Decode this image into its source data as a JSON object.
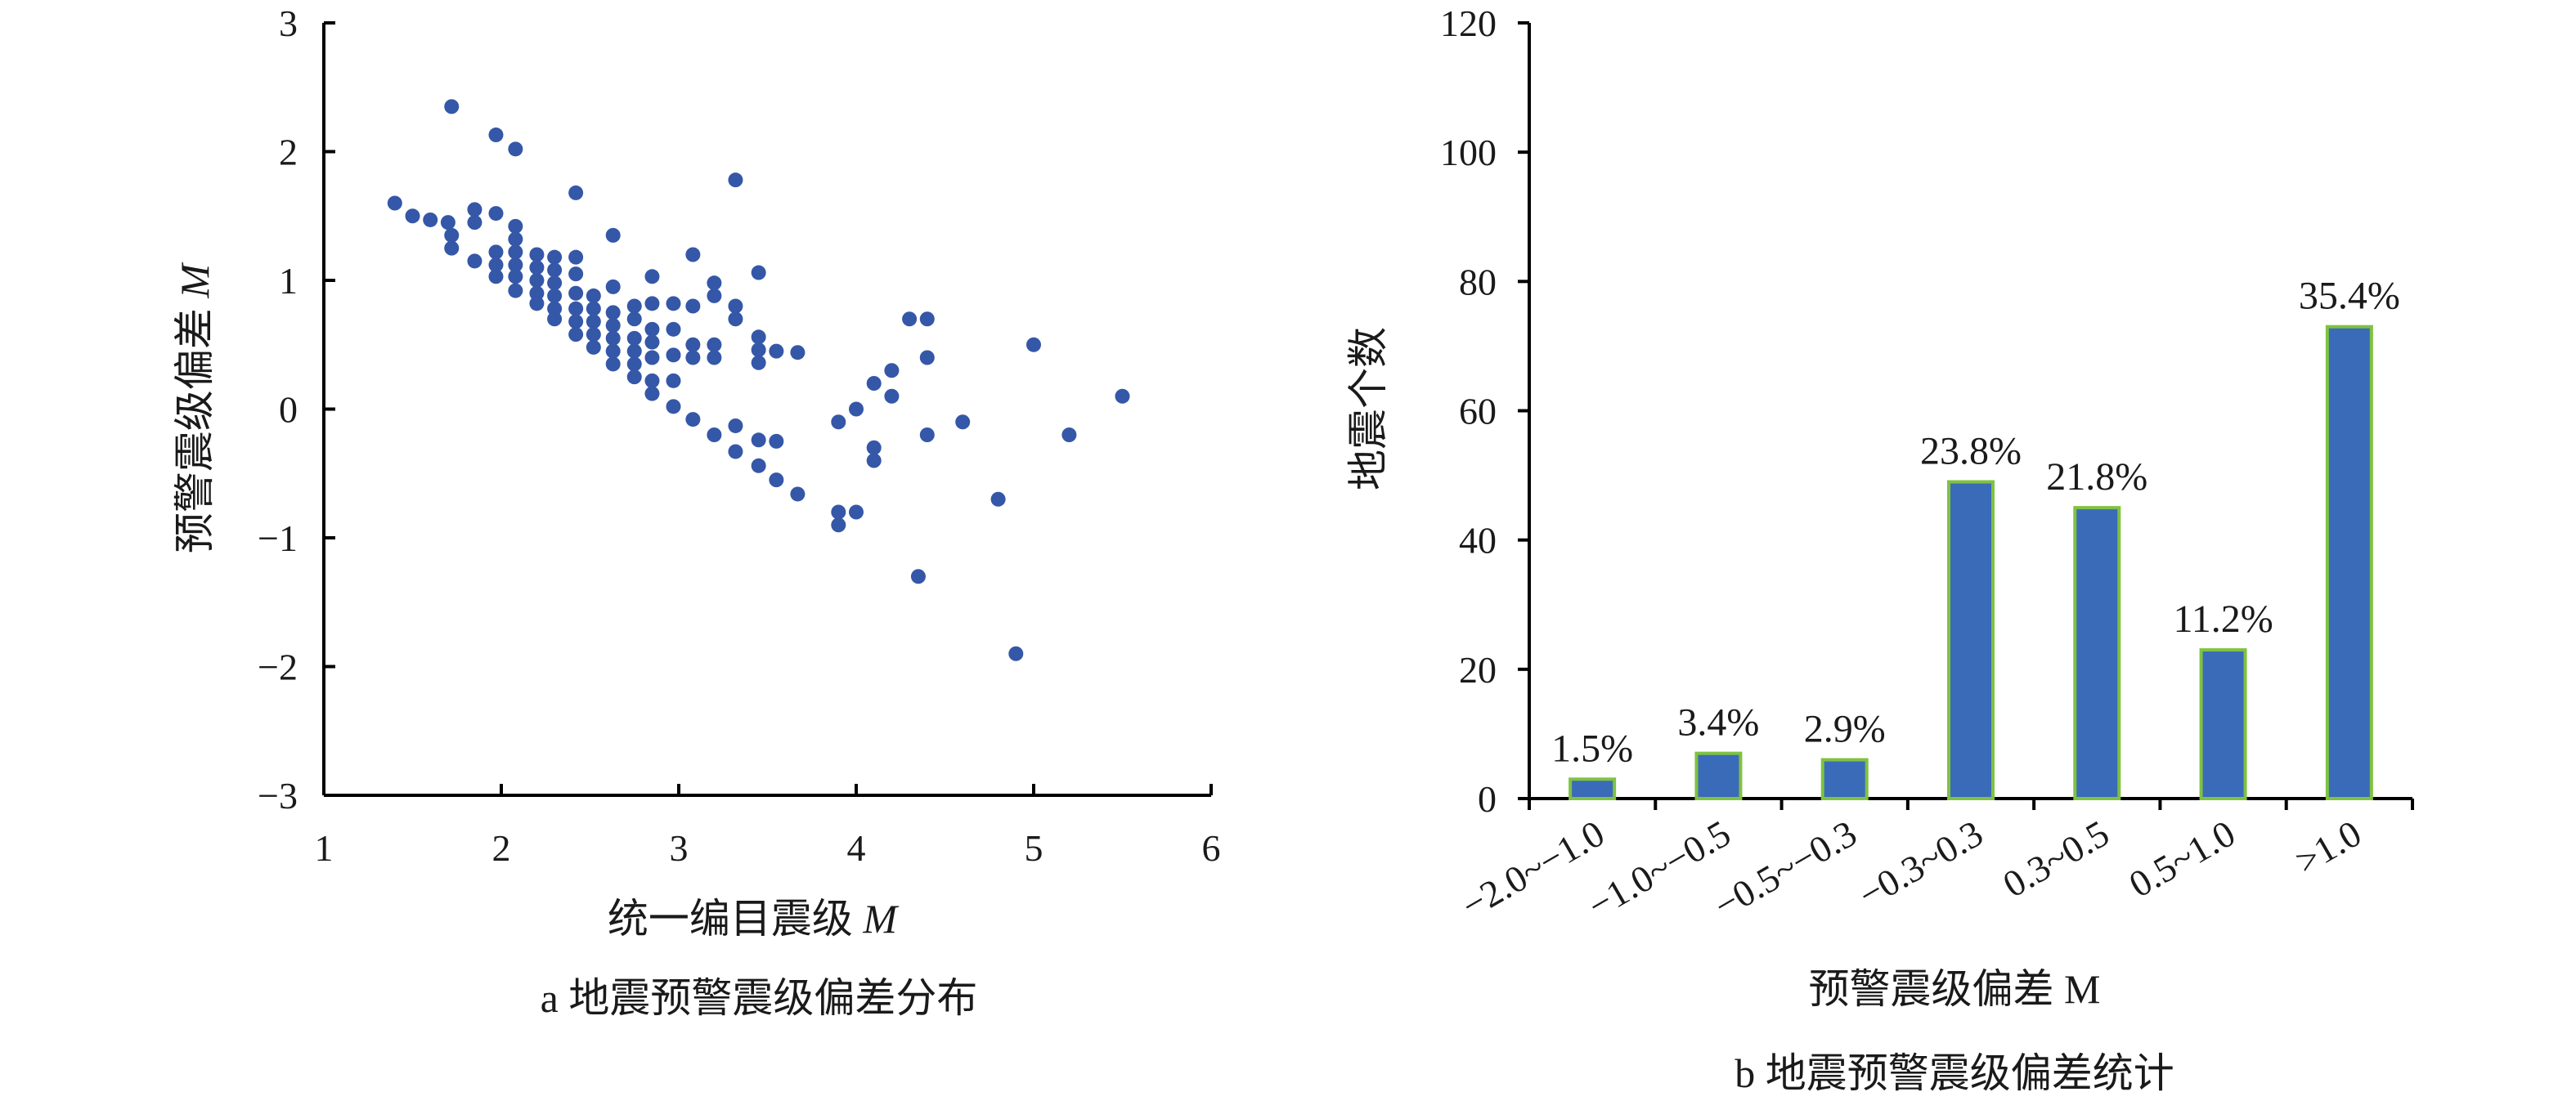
{
  "chart_data": [
    {
      "type": "scatter",
      "xlabel": "统一编目震级",
      "xlabel_var": "M",
      "ylabel": "预警震级偏差",
      "ylabel_var": "M",
      "caption": "a 地震预警震级偏差分布",
      "xlim": [
        1,
        6
      ],
      "ylim": [
        -3,
        3
      ],
      "xticks": [
        "1",
        "2",
        "3",
        "4",
        "5",
        "6"
      ],
      "yticks": [
        "−3",
        "−2",
        "−1",
        "0",
        "1",
        "2",
        "3"
      ],
      "grid": false,
      "marker_color": "#3557a8",
      "points": [
        [
          1.4,
          1.6
        ],
        [
          1.5,
          1.5
        ],
        [
          1.6,
          1.47
        ],
        [
          1.7,
          1.45
        ],
        [
          1.72,
          2.35
        ],
        [
          1.72,
          1.35
        ],
        [
          1.72,
          1.25
        ],
        [
          1.85,
          1.55
        ],
        [
          1.85,
          1.45
        ],
        [
          1.85,
          1.15
        ],
        [
          1.97,
          2.13
        ],
        [
          1.97,
          1.52
        ],
        [
          1.97,
          1.22
        ],
        [
          1.97,
          1.12
        ],
        [
          1.97,
          1.03
        ],
        [
          2.08,
          2.02
        ],
        [
          2.08,
          1.42
        ],
        [
          2.08,
          1.32
        ],
        [
          2.08,
          1.22
        ],
        [
          2.08,
          1.12
        ],
        [
          2.08,
          1.03
        ],
        [
          2.08,
          0.92
        ],
        [
          2.2,
          1.2
        ],
        [
          2.2,
          1.1
        ],
        [
          2.2,
          1.0
        ],
        [
          2.2,
          0.9
        ],
        [
          2.2,
          0.82
        ],
        [
          2.3,
          1.18
        ],
        [
          2.3,
          1.08
        ],
        [
          2.3,
          0.98
        ],
        [
          2.3,
          0.88
        ],
        [
          2.3,
          0.78
        ],
        [
          2.3,
          0.7
        ],
        [
          2.42,
          1.68
        ],
        [
          2.42,
          1.18
        ],
        [
          2.42,
          1.05
        ],
        [
          2.42,
          0.9
        ],
        [
          2.42,
          0.78
        ],
        [
          2.42,
          0.68
        ],
        [
          2.42,
          0.58
        ],
        [
          2.52,
          0.88
        ],
        [
          2.52,
          0.78
        ],
        [
          2.52,
          0.68
        ],
        [
          2.52,
          0.58
        ],
        [
          2.52,
          0.48
        ],
        [
          2.63,
          1.35
        ],
        [
          2.63,
          0.95
        ],
        [
          2.63,
          0.75
        ],
        [
          2.63,
          0.65
        ],
        [
          2.63,
          0.55
        ],
        [
          2.63,
          0.45
        ],
        [
          2.63,
          0.35
        ],
        [
          2.75,
          0.8
        ],
        [
          2.75,
          0.7
        ],
        [
          2.75,
          0.55
        ],
        [
          2.75,
          0.45
        ],
        [
          2.75,
          0.35
        ],
        [
          2.75,
          0.25
        ],
        [
          2.85,
          1.03
        ],
        [
          2.85,
          0.82
        ],
        [
          2.85,
          0.62
        ],
        [
          2.85,
          0.52
        ],
        [
          2.85,
          0.4
        ],
        [
          2.85,
          0.22
        ],
        [
          2.85,
          0.12
        ],
        [
          2.97,
          0.82
        ],
        [
          2.97,
          0.62
        ],
        [
          2.97,
          0.42
        ],
        [
          2.97,
          0.22
        ],
        [
          2.97,
          0.02
        ],
        [
          3.08,
          1.2
        ],
        [
          3.08,
          0.8
        ],
        [
          3.08,
          0.5
        ],
        [
          3.08,
          0.4
        ],
        [
          3.08,
          -0.08
        ],
        [
          3.2,
          0.98
        ],
        [
          3.2,
          0.88
        ],
        [
          3.2,
          0.5
        ],
        [
          3.2,
          0.4
        ],
        [
          3.2,
          -0.2
        ],
        [
          3.32,
          1.78
        ],
        [
          3.32,
          0.8
        ],
        [
          3.32,
          0.7
        ],
        [
          3.32,
          -0.13
        ],
        [
          3.32,
          -0.33
        ],
        [
          3.45,
          1.06
        ],
        [
          3.45,
          0.56
        ],
        [
          3.45,
          0.46
        ],
        [
          3.45,
          0.36
        ],
        [
          3.45,
          -0.24
        ],
        [
          3.45,
          -0.44
        ],
        [
          3.55,
          0.45
        ],
        [
          3.55,
          -0.25
        ],
        [
          3.55,
          -0.55
        ],
        [
          3.67,
          0.44
        ],
        [
          3.67,
          -0.66
        ],
        [
          3.9,
          -0.1
        ],
        [
          3.9,
          -0.8
        ],
        [
          3.9,
          -0.9
        ],
        [
          4.0,
          0.0
        ],
        [
          4.0,
          -0.8
        ],
        [
          4.1,
          0.2
        ],
        [
          4.1,
          -0.3
        ],
        [
          4.1,
          -0.4
        ],
        [
          4.2,
          0.1
        ],
        [
          4.2,
          0.3
        ],
        [
          4.3,
          0.7
        ],
        [
          4.35,
          -1.3
        ],
        [
          4.4,
          0.7
        ],
        [
          4.4,
          0.4
        ],
        [
          4.4,
          -0.2
        ],
        [
          4.6,
          -0.1
        ],
        [
          4.8,
          -0.7
        ],
        [
          4.9,
          -1.9
        ],
        [
          5.0,
          0.5
        ],
        [
          5.2,
          -0.2
        ],
        [
          5.5,
          0.1
        ]
      ]
    },
    {
      "type": "bar",
      "xlabel": "预警震级偏差 M",
      "ylabel": "地震个数",
      "caption": "b 地震预警震级偏差统计",
      "ylim": [
        0,
        120
      ],
      "yticks": [
        "0",
        "20",
        "40",
        "60",
        "80",
        "100",
        "120"
      ],
      "grid": false,
      "bar_fill": "#3a6bb8",
      "bar_edge": "#7fc241",
      "categories": [
        "−2.0~−1.0",
        "−1.0~−0.5",
        "−0.5~−0.3",
        "−0.3~0.3",
        "0.3~0.5",
        "0.5~1.0",
        ">1.0"
      ],
      "values": [
        3,
        7,
        6,
        49,
        45,
        23,
        73
      ],
      "labels": [
        "1.5%",
        "3.4%",
        "2.9%",
        "23.8%",
        "21.8%",
        "11.2%",
        "35.4%"
      ]
    }
  ]
}
